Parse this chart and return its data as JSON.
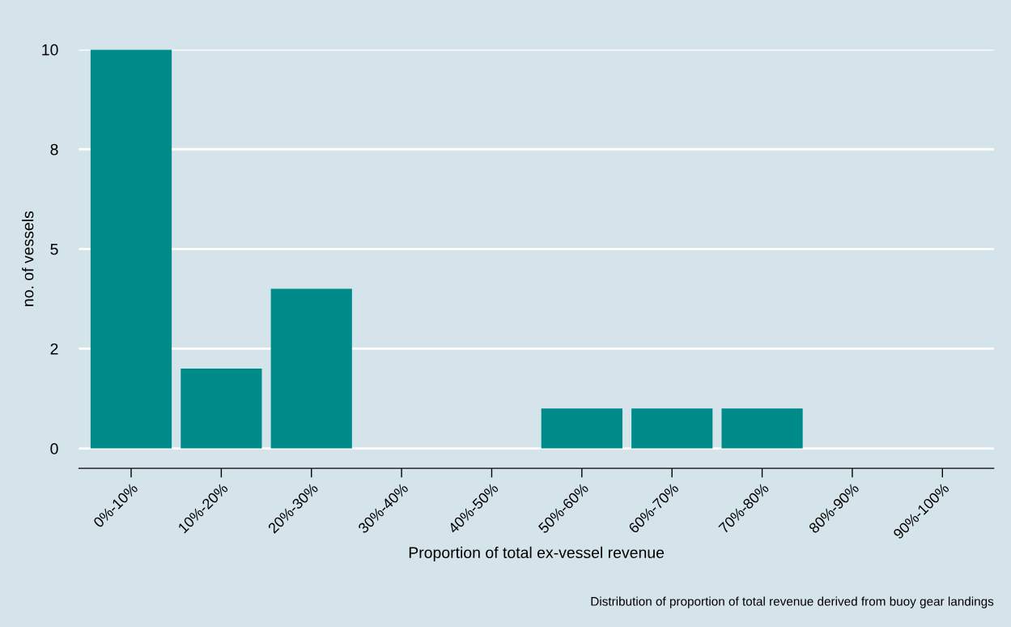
{
  "chart_data": {
    "type": "bar",
    "categories": [
      "0%-10%",
      "10%-20%",
      "20%-30%",
      "30%-40%",
      "40%-50%",
      "50%-60%",
      "60%-70%",
      "70%-80%",
      "80%-90%",
      "90%-100%"
    ],
    "values": [
      10,
      2,
      4,
      0,
      0,
      1,
      1,
      1,
      0,
      0
    ],
    "color": "#008b8b",
    "xlabel": "Proportion of total ex-vessel revenue",
    "ylabel": "no. of vessels",
    "ylim": [
      -0.5,
      10
    ],
    "yticks": [
      0,
      {
        "value": 2.5,
        "label": "2"
      },
      5,
      {
        "value": 7.5,
        "label": "8"
      },
      10
    ],
    "grid": "y",
    "annotations": [
      "Distribution of proportion of total revenue derived from buoy gear landings"
    ]
  }
}
